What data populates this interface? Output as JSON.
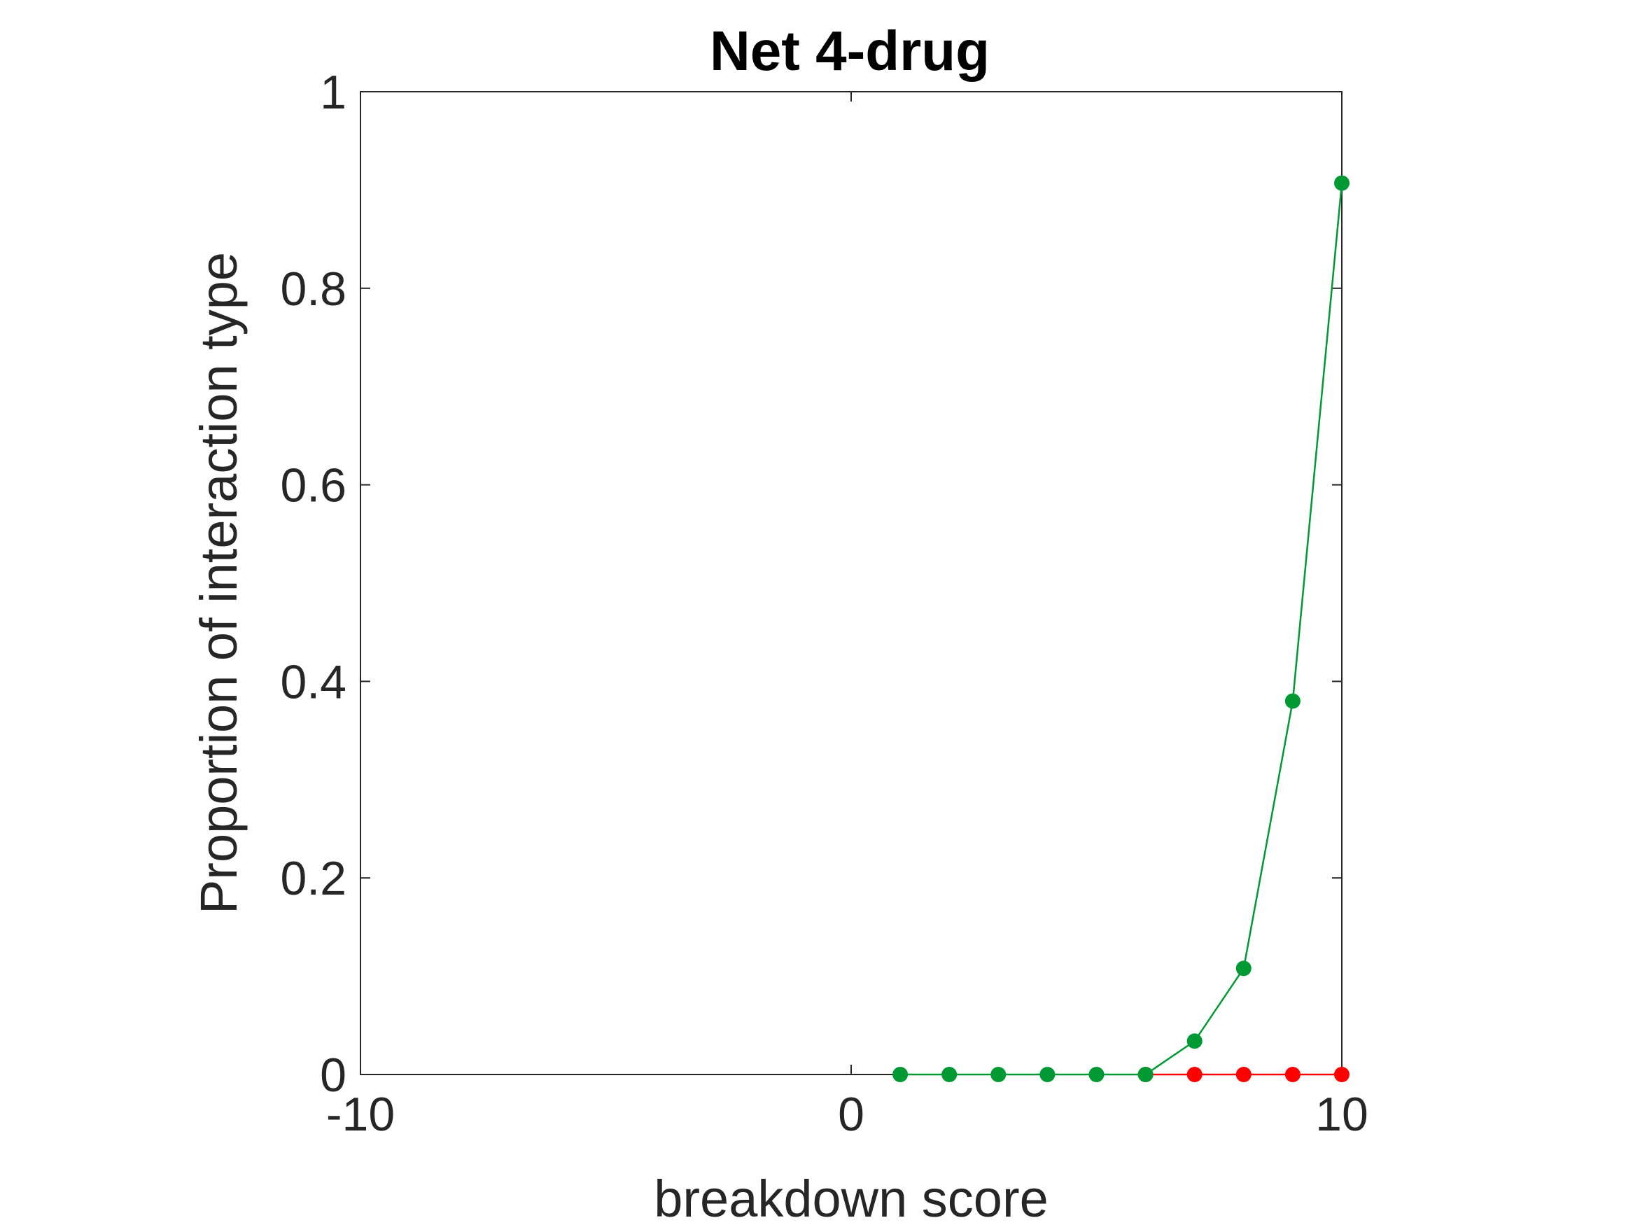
{
  "chart_data": {
    "type": "line",
    "title": "Net 4-drug",
    "xlabel": "breakdown score",
    "ylabel": "Proportion of interaction type",
    "xlim": [
      -10,
      10
    ],
    "ylim": [
      0,
      1
    ],
    "xticks": [
      -10,
      0,
      10
    ],
    "xtick_labels": [
      "-10",
      "0",
      "10"
    ],
    "yticks": [
      0,
      0.2,
      0.4,
      0.6,
      0.8,
      1
    ],
    "ytick_labels": [
      "0",
      "0.2",
      "0.4",
      "0.6",
      "0.8",
      "1"
    ],
    "grid": false,
    "series": [
      {
        "name": "red series",
        "color": "#ff0000",
        "x": [
          6,
          7,
          8,
          9,
          10
        ],
        "y": [
          0,
          0,
          0,
          0,
          0
        ]
      },
      {
        "name": "green series",
        "color": "#009933",
        "x": [
          1,
          2,
          3,
          4,
          5,
          6,
          7,
          8,
          9,
          10
        ],
        "y": [
          0,
          0,
          0,
          0,
          0,
          0,
          0.034,
          0.108,
          0.38,
          0.907
        ]
      }
    ]
  }
}
